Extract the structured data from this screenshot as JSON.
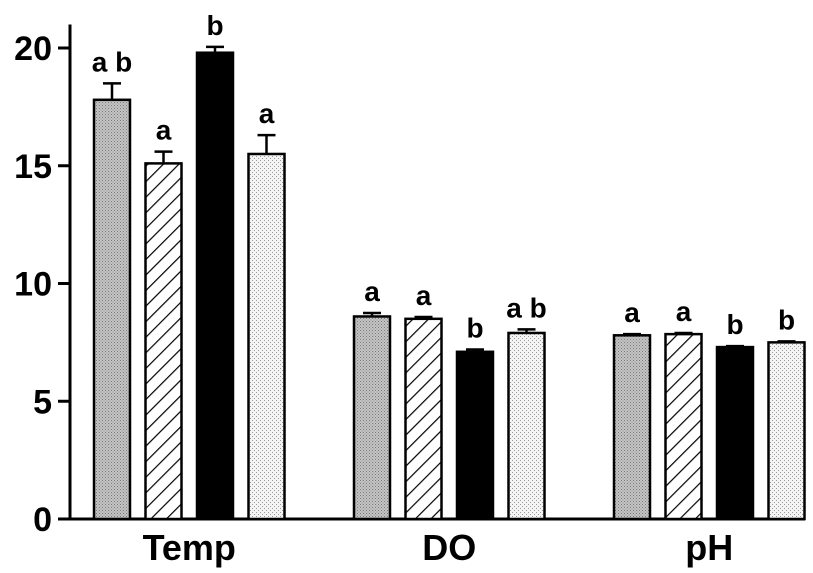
{
  "chart_data": {
    "type": "bar",
    "categories": [
      "Temp",
      "DO",
      "pH"
    ],
    "ylim": [
      0,
      21
    ],
    "yticks": [
      "0",
      "5",
      "10",
      "15",
      "20"
    ],
    "series": [
      {
        "pattern": "dotted-gray",
        "values": [
          17.8,
          8.6,
          7.8
        ],
        "errors": [
          0.7,
          0.15,
          0.05
        ],
        "letters": [
          "a b",
          "a",
          "a"
        ]
      },
      {
        "pattern": "diagonal-hatch",
        "values": [
          15.1,
          8.5,
          7.85
        ],
        "errors": [
          0.5,
          0.08,
          0.05
        ],
        "letters": [
          "a",
          "a",
          "a"
        ]
      },
      {
        "pattern": "solid-black",
        "values": [
          19.8,
          7.1,
          7.3
        ],
        "errors": [
          0.25,
          0.1,
          0.04
        ],
        "letters": [
          "b",
          "b",
          "b"
        ]
      },
      {
        "pattern": "light-dotted",
        "values": [
          15.5,
          7.9,
          7.5
        ],
        "errors": [
          0.8,
          0.15,
          0.04
        ],
        "letters": [
          "a",
          "a b",
          "b"
        ]
      }
    ]
  }
}
